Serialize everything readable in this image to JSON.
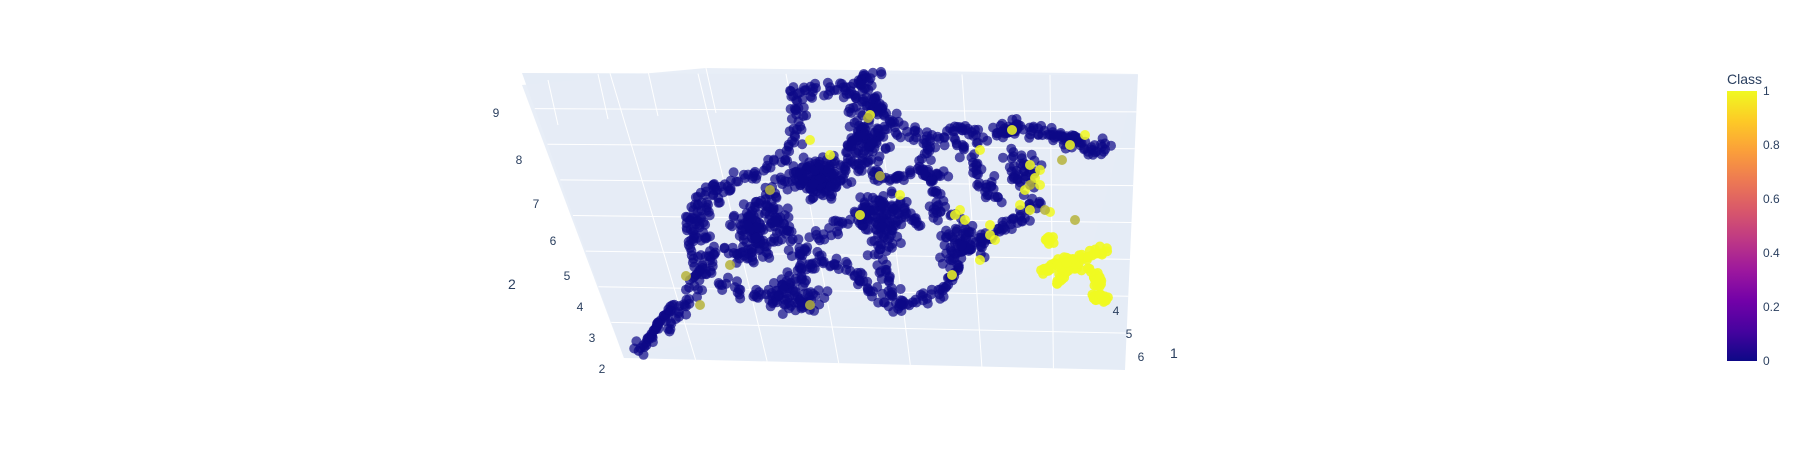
{
  "chart_data": {
    "type": "scatter",
    "variant": "3d-scatter",
    "title": "",
    "colorscale": "plasma",
    "colors": {
      "scene_bg": "#e5ecf6",
      "grid": "#ffffff",
      "class0": "#0d0887",
      "class1": "#f0f921",
      "text": "#2a3f5f"
    },
    "axes": {
      "axis_a": {
        "title": "2",
        "ticks": [
          "2",
          "3",
          "4",
          "5",
          "6",
          "7",
          "8",
          "9"
        ]
      },
      "axis_b": {
        "title": "1",
        "ticks": [
          "4",
          "5",
          "6"
        ]
      }
    },
    "colorbar": {
      "title": "Class",
      "ticks": [
        "0",
        "0.2",
        "0.4",
        "0.6",
        "0.8",
        "1"
      ],
      "range": [
        0,
        1
      ]
    },
    "series": [
      {
        "class": 0,
        "description": "dense cluster of class 0 points"
      },
      {
        "class": 1,
        "description": "class 1 points, concentrated on the right"
      }
    ]
  }
}
